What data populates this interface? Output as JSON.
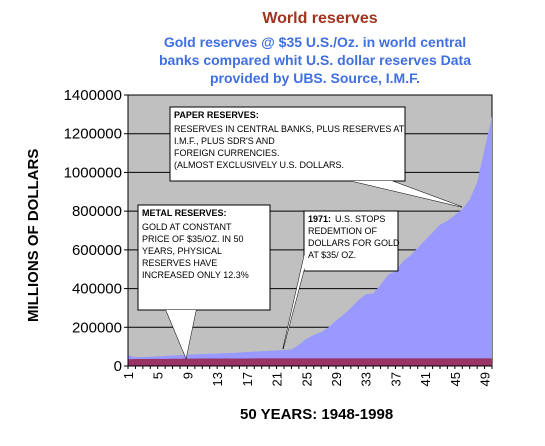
{
  "chart_data": {
    "type": "area",
    "title": "World reserves",
    "subtitle_lines": [
      "Gold reserves @ $35 U.S./Oz. in world central",
      "banks compared whit U.S. dollar reserves Data",
      "provided by UBS. Source, I.M.F."
    ],
    "xlabel": "50 YEARS: 1948-1998",
    "ylabel": "MILLIONS OF DOLLARS",
    "x": [
      1,
      2,
      3,
      4,
      5,
      6,
      7,
      8,
      9,
      10,
      11,
      12,
      13,
      14,
      15,
      16,
      17,
      18,
      19,
      20,
      21,
      22,
      23,
      24,
      25,
      26,
      27,
      28,
      29,
      30,
      31,
      32,
      33,
      34,
      35,
      36,
      37,
      38,
      39,
      40,
      41,
      42,
      43,
      44,
      45,
      46,
      47,
      48,
      49,
      50
    ],
    "x_ticks": [
      1,
      5,
      9,
      13,
      17,
      21,
      25,
      29,
      33,
      37,
      41,
      45,
      49
    ],
    "y_ticks": [
      0,
      200000,
      400000,
      600000,
      800000,
      1000000,
      1200000,
      1400000
    ],
    "ylim": [
      0,
      1400000
    ],
    "xlim": [
      1,
      50
    ],
    "grid": true,
    "plot_background": "#c0c0c0",
    "series": [
      {
        "fill": "#9999ff",
        "values": [
          55000,
          45000,
          47000,
          48000,
          50000,
          52000,
          54000,
          56000,
          58000,
          60000,
          62000,
          63000,
          64000,
          66000,
          68000,
          70000,
          72000,
          74000,
          76000,
          78000,
          80000,
          82000,
          85000,
          110000,
          140000,
          160000,
          175000,
          200000,
          235000,
          265000,
          300000,
          340000,
          370000,
          375000,
          420000,
          470000,
          490000,
          540000,
          570000,
          610000,
          650000,
          690000,
          730000,
          750000,
          780000,
          810000,
          860000,
          950000,
          1120000,
          1290000
        ]
      },
      {
        "fill": "#993366",
        "values": [
          35000,
          36000,
          36000,
          36500,
          37000,
          37000,
          37500,
          37500,
          38000,
          38000,
          38500,
          38500,
          38500,
          39000,
          39000,
          39000,
          39000,
          39500,
          39500,
          39500,
          39500,
          39500,
          39500,
          39500,
          39500,
          39500,
          39500,
          39500,
          39500,
          39500,
          39500,
          39500,
          39500,
          39500,
          39500,
          39500,
          39500,
          39500,
          39500,
          39500,
          39500,
          39500,
          39500,
          39500,
          39500,
          39500,
          39500,
          39500,
          39500,
          39300
        ]
      }
    ],
    "annotations": [
      {
        "heading": "PAPER RESERVES:",
        "lines": [
          "RESERVES IN CENTRAL BANKS, PLUS RESERVES AT",
          "I.M.F., PLUS SDR'S AND",
          "FOREIGN CURRENCIES.",
          "(ALMOST EXCLUSIVELY U.S. DOLLARS."
        ]
      },
      {
        "heading": "METAL RESERVES:",
        "lines": [
          "GOLD AT CONSTANT",
          "PRICE OF $35/OZ. IN 50",
          "YEARS, PHYSICAL",
          "RESERVES HAVE",
          "INCREASED ONLY 12.3%"
        ]
      },
      {
        "heading": "1971:",
        "lines": [
          "U.S. STOPS",
          "REDEMTION OF",
          "DOLLARS FOR GOLD",
          "AT $35/ OZ."
        ]
      }
    ]
  }
}
